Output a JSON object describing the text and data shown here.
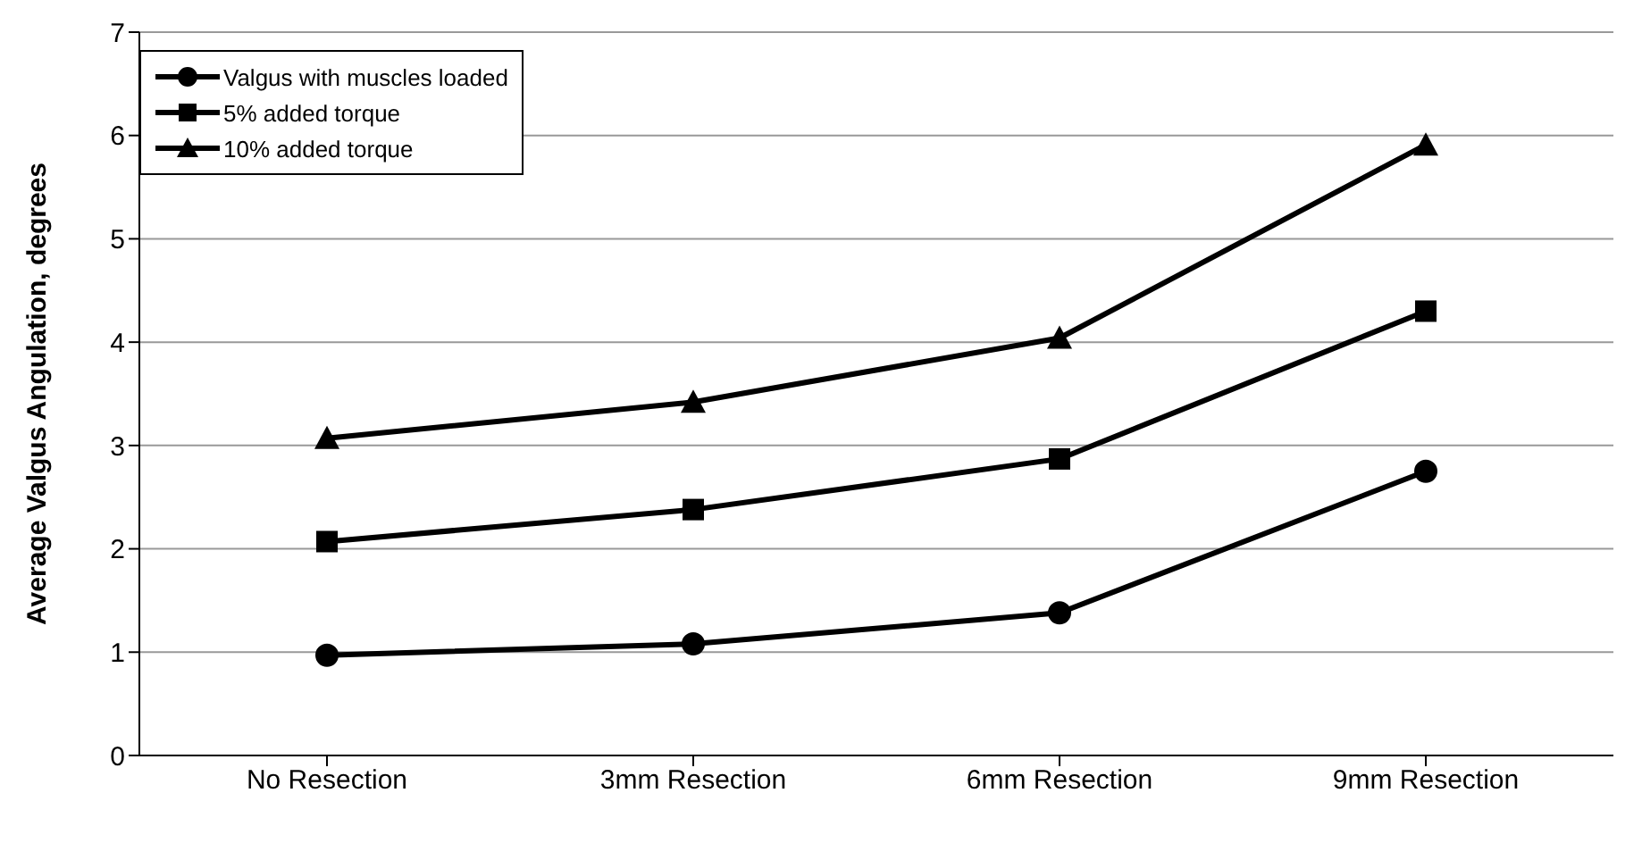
{
  "chart_data": {
    "type": "line",
    "ylabel": "Average Valgus Angulation, degrees",
    "categories": [
      "No Resection",
      "3mm Resection",
      "6mm Resection",
      "9mm Resection"
    ],
    "series": [
      {
        "name": "Valgus with muscles loaded",
        "color": "#000000",
        "marker": "circle",
        "values": [
          0.97,
          1.08,
          1.38,
          2.75
        ]
      },
      {
        "name": "5% added torque",
        "color": "#000000",
        "marker": "square",
        "values": [
          2.07,
          2.38,
          2.87,
          4.3
        ]
      },
      {
        "name": "10% added torque",
        "color": "#000000",
        "marker": "triangle",
        "values": [
          3.07,
          3.42,
          4.04,
          5.91
        ]
      }
    ],
    "ylim": [
      0,
      7
    ],
    "yticks": [
      0,
      1,
      2,
      3,
      4,
      5,
      6,
      7
    ],
    "grid": "y",
    "legend": "top left",
    "line_style": "solid"
  }
}
